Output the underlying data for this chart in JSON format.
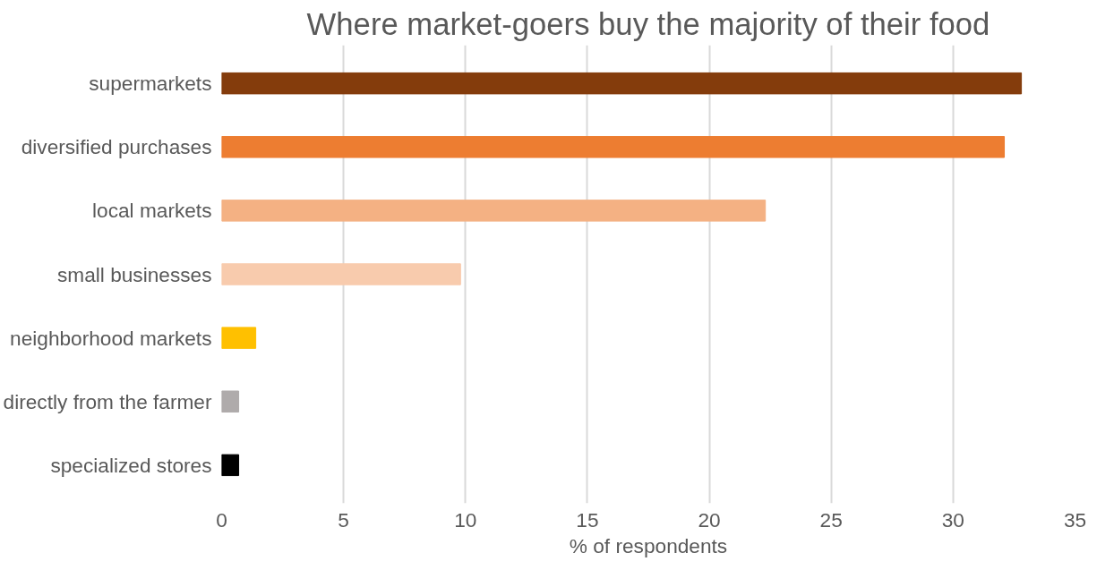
{
  "chart_data": {
    "type": "bar",
    "orientation": "horizontal",
    "title": "Where market-goers buy the majority of their food",
    "xlabel": "% of respondents",
    "categories": [
      "supermarkets",
      "diversified purchases",
      "local markets",
      "small businesses",
      "neighborhood markets",
      "directly from the farmer",
      "specialized stores"
    ],
    "values": [
      32.8,
      32.1,
      22.3,
      9.8,
      1.4,
      0.7,
      0.7
    ],
    "colors": [
      "#843c0c",
      "#ed7d31",
      "#f4b183",
      "#f8cbad",
      "#ffc000",
      "#afabab",
      "#000000"
    ],
    "xlim": [
      0,
      35
    ],
    "xticks": [
      0,
      5,
      10,
      15,
      20,
      25,
      30,
      35
    ],
    "grid": "x"
  }
}
